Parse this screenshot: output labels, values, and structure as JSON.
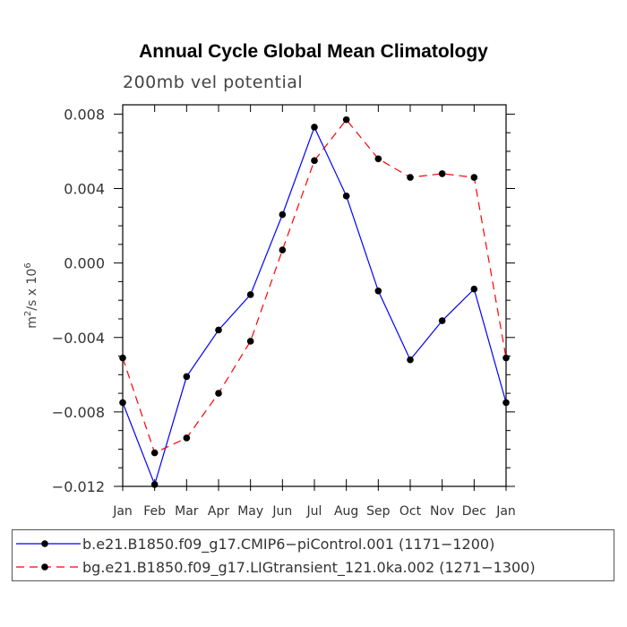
{
  "chart_data": {
    "type": "line",
    "title": "Annual Cycle Global Mean Climatology",
    "subtitle": "200mb vel potential",
    "ylabel_base": "m",
    "ylabel_sup1": "2",
    "ylabel_mid": "/s x 10",
    "ylabel_sup2": "6",
    "x": [
      "Jan",
      "Feb",
      "Mar",
      "Apr",
      "May",
      "Jun",
      "Jul",
      "Aug",
      "Sep",
      "Oct",
      "Nov",
      "Dec",
      "Jan"
    ],
    "ylim": [
      -0.012,
      0.0085
    ],
    "yticks": [
      "0.008",
      "0.004",
      "0.000",
      "−0.004",
      "−0.008",
      "−0.012"
    ],
    "ytick_values": [
      0.008,
      0.004,
      0.0,
      -0.004,
      -0.008,
      -0.012
    ],
    "grid": false,
    "legend_position": "bottom",
    "series": [
      {
        "name": "b.e21.B1850.f09_g17.CMIP6−piControl.001 (1171−1200)",
        "color": "#0000ff",
        "dash": "solid",
        "values": [
          -0.0075,
          -0.0119,
          -0.0061,
          -0.0036,
          -0.0017,
          0.0026,
          0.0073,
          0.0036,
          -0.0015,
          -0.0052,
          -0.0031,
          -0.0014,
          -0.0075
        ]
      },
      {
        "name": "bg.e21.B1850.f09_g17.LIGtransient_121.0ka.002 (1271−1300)",
        "color": "#ff0000",
        "dash": "dashed",
        "values": [
          -0.0051,
          -0.0102,
          -0.0094,
          -0.007,
          -0.0042,
          0.0007,
          0.0055,
          0.0077,
          0.0056,
          0.0046,
          0.0048,
          0.0046,
          -0.0051
        ]
      }
    ]
  }
}
